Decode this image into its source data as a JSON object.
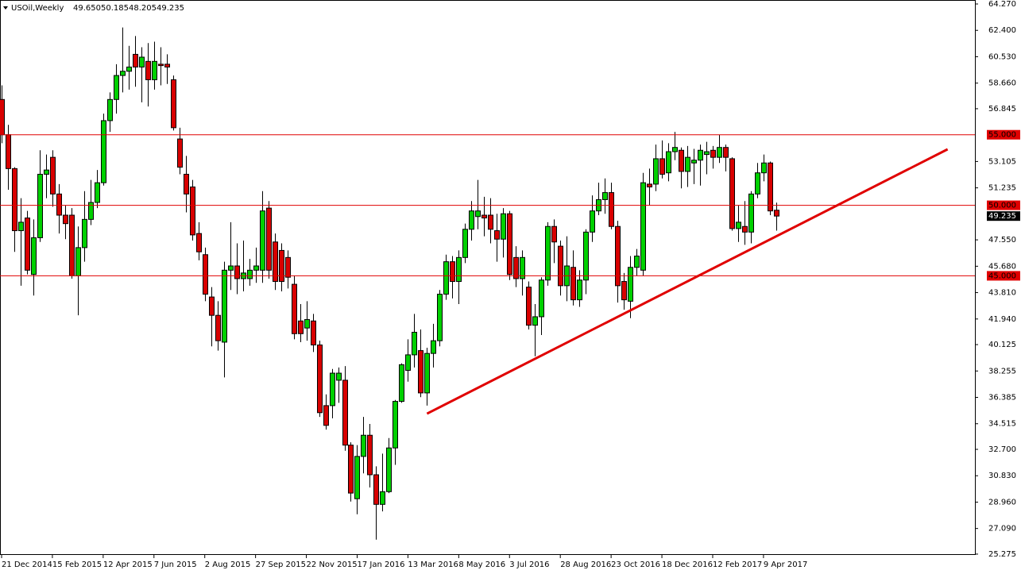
{
  "chart_data": {
    "type": "candlestick",
    "header": {
      "symbol": "USOil,Weekly",
      "ohlc": [
        "49.650",
        "50.185",
        "48.205",
        "49.235"
      ]
    },
    "open": [
      57.5,
      55.0,
      52.6,
      48.2,
      49.1,
      45.1,
      47.7,
      52.2,
      53.4,
      50.8,
      49.3,
      49.3,
      45.0,
      47.0,
      49.0,
      50.2,
      51.6,
      56.0,
      57.5,
      59.2,
      59.5,
      60.7,
      59.8,
      60.2,
      58.9,
      60.0,
      60.0,
      58.9,
      54.7,
      52.2,
      51.3,
      48.0,
      46.5,
      43.5,
      42.2,
      40.3,
      45.4,
      45.7,
      44.8,
      44.8,
      45.4,
      45.4,
      49.8,
      47.4,
      46.8,
      46.3,
      44.4,
      41.8,
      41.3,
      41.8,
      40.1,
      35.8,
      35.8,
      37.6,
      37.6,
      33.0,
      29.2,
      32.2,
      33.7,
      30.9,
      28.8,
      29.7,
      32.8,
      36.1,
      38.3,
      39.4,
      39.7,
      36.7,
      39.5,
      40.4,
      43.7,
      46.0,
      44.6,
      46.3,
      48.3,
      49.2,
      49.3,
      49.3,
      48.2,
      47.6,
      49.4,
      46.3,
      44.8,
      44.2,
      41.5,
      42.1,
      44.7,
      48.5,
      47.1,
      44.3,
      45.6,
      43.3,
      44.7,
      48.1,
      49.6,
      50.4,
      50.9,
      48.5,
      44.6,
      43.2,
      45.6,
      45.4,
      51.5,
      51.5,
      53.3,
      52.3,
      53.8,
      53.9,
      52.4,
      53.0,
      53.2,
      53.6,
      53.9,
      53.4,
      54.1,
      53.3,
      48.35,
      48.5,
      48.1,
      50.8,
      52.3,
      53.0,
      49.65
    ],
    "high": [
      58.5,
      55.7,
      52.7,
      50.5,
      49.6,
      49.0,
      53.9,
      53.6,
      53.9,
      51.5,
      50.0,
      49.8,
      48.5,
      51.0,
      51.8,
      52.5,
      56.5,
      58.0,
      60.0,
      62.6,
      61.3,
      62.0,
      61.2,
      61.5,
      61.6,
      61.2,
      60.7,
      59.2,
      55.5,
      53.5,
      51.8,
      48.8,
      47.0,
      44.2,
      43.2,
      46.0,
      48.8,
      47.3,
      47.5,
      46.2,
      47.0,
      51.0,
      50.3,
      48.0,
      47.3,
      46.8,
      45.0,
      43.0,
      43.2,
      42.3,
      40.4,
      36.6,
      38.4,
      38.5,
      38.6,
      33.2,
      33.0,
      35.0,
      34.5,
      31.5,
      32.4,
      33.5,
      36.2,
      38.8,
      40.5,
      42.3,
      41.2,
      39.9,
      41.6,
      44.0,
      46.5,
      46.4,
      46.8,
      48.7,
      50.3,
      51.8,
      50.6,
      50.5,
      49.4,
      49.8,
      49.6,
      47.1,
      46.8,
      44.6,
      43.0,
      44.9,
      48.8,
      49.0,
      47.5,
      47.8,
      46.8,
      45.4,
      48.3,
      50.7,
      51.6,
      51.9,
      51.6,
      48.9,
      45.2,
      46.4,
      46.9,
      52.3,
      52.6,
      54.3,
      54.6,
      54.4,
      55.2,
      54.1,
      54.2,
      54.0,
      54.3,
      54.5,
      54.2,
      55.0,
      54.3,
      53.4,
      50.0,
      50.3,
      51.0,
      53.0,
      53.6,
      53.1,
      50.185
    ],
    "low": [
      54.4,
      51.1,
      46.7,
      44.3,
      45.1,
      43.6,
      47.4,
      50.5,
      49.9,
      48.0,
      47.6,
      44.8,
      42.2,
      46.0,
      48.6,
      49.8,
      51.4,
      55.2,
      56.5,
      58.0,
      58.2,
      58.4,
      57.3,
      57.0,
      58.2,
      58.5,
      58.6,
      55.3,
      52.2,
      49.5,
      47.5,
      46.1,
      43.2,
      40.0,
      39.7,
      37.8,
      44.0,
      43.7,
      43.9,
      44.3,
      44.5,
      44.5,
      44.8,
      44.0,
      43.9,
      44.1,
      40.5,
      40.3,
      40.4,
      39.6,
      35.0,
      34.1,
      34.9,
      36.0,
      32.6,
      29.0,
      28.1,
      31.0,
      30.0,
      26.3,
      28.3,
      29.6,
      31.6,
      36.0,
      37.5,
      38.5,
      36.4,
      35.8,
      38.5,
      40.0,
      43.3,
      43.4,
      43.0,
      45.9,
      47.5,
      48.3,
      47.8,
      47.3,
      46.0,
      46.3,
      44.7,
      44.2,
      43.6,
      41.2,
      39.3,
      40.8,
      44.3,
      45.9,
      43.6,
      43.2,
      42.9,
      42.8,
      43.7,
      47.4,
      49.3,
      49.4,
      48.3,
      43.1,
      42.6,
      42.0,
      45.0,
      45.0,
      50.0,
      51.0,
      51.9,
      51.7,
      53.2,
      51.2,
      51.3,
      51.5,
      51.4,
      52.2,
      52.6,
      53.0,
      52.4,
      48.2,
      47.4,
      47.2,
      47.3,
      50.5,
      51.7,
      49.3,
      48.205
    ],
    "close": [
      55.0,
      52.6,
      48.2,
      48.8,
      45.4,
      47.7,
      52.2,
      52.5,
      50.8,
      49.3,
      48.7,
      45.0,
      47.0,
      49.0,
      50.2,
      51.6,
      56.0,
      57.5,
      59.2,
      59.5,
      59.8,
      59.8,
      60.5,
      58.9,
      60.2,
      59.9,
      59.8,
      55.5,
      52.7,
      50.8,
      47.9,
      46.7,
      43.7,
      42.2,
      40.4,
      45.4,
      45.7,
      44.8,
      45.2,
      45.4,
      45.7,
      49.6,
      45.4,
      44.6,
      44.6,
      44.9,
      40.9,
      40.9,
      41.9,
      40.1,
      35.3,
      34.4,
      38.1,
      38.1,
      33.0,
      29.6,
      32.2,
      33.7,
      30.9,
      28.8,
      29.7,
      32.8,
      36.1,
      38.7,
      39.4,
      41.0,
      36.7,
      39.5,
      40.4,
      43.7,
      46.0,
      44.6,
      46.3,
      48.3,
      49.6,
      49.6,
      49.1,
      48.3,
      47.6,
      49.4,
      45.1,
      44.8,
      46.3,
      41.5,
      42.1,
      44.7,
      48.5,
      47.4,
      44.3,
      45.7,
      43.3,
      44.7,
      48.1,
      49.6,
      50.4,
      50.9,
      48.5,
      44.3,
      43.3,
      45.6,
      46.4,
      51.6,
      51.3,
      53.3,
      52.2,
      53.8,
      54.1,
      52.4,
      53.4,
      53.2,
      53.9,
      53.8,
      53.4,
      54.1,
      53.4,
      48.35,
      48.8,
      48.1,
      50.8,
      52.3,
      53.0,
      49.6,
      49.235
    ],
    "up_color": "#00d000",
    "down_color": "#d80000",
    "xlim": [
      -0.25,
      153.3
    ],
    "ylim": [
      25.215,
      64.551
    ],
    "xticks": [
      {
        "value": 0,
        "label": "21 Dec 2014"
      },
      {
        "value": 8,
        "label": "15 Feb 2015"
      },
      {
        "value": 16,
        "label": "12 Apr 2015"
      },
      {
        "value": 24,
        "label": "7 Jun 2015"
      },
      {
        "value": 32,
        "label": "2 Aug 2015"
      },
      {
        "value": 40,
        "label": "27 Sep 2015"
      },
      {
        "value": 48,
        "label": "22 Nov 2015"
      },
      {
        "value": 56,
        "label": "17 Jan 2016"
      },
      {
        "value": 64,
        "label": "13 Mar 2016"
      },
      {
        "value": 72,
        "label": "8 May 2016"
      },
      {
        "value": 80,
        "label": "3 Jul 2016"
      },
      {
        "value": 88,
        "label": "28 Aug 2016"
      },
      {
        "value": 96,
        "label": "23 Oct 2016"
      },
      {
        "value": 104,
        "label": "18 Dec 2016"
      },
      {
        "value": 112,
        "label": "12 Feb 2017"
      },
      {
        "value": 120,
        "label": "9 Apr 2017"
      }
    ],
    "yticks": [
      {
        "value": 64.27,
        "label": "64.270"
      },
      {
        "value": 62.4,
        "label": "62.400"
      },
      {
        "value": 60.53,
        "label": "60.530"
      },
      {
        "value": 58.66,
        "label": "58.660"
      },
      {
        "value": 56.845,
        "label": "56.845"
      },
      {
        "value": 53.105,
        "label": "53.105"
      },
      {
        "value": 51.235,
        "label": "51.235"
      },
      {
        "value": 47.55,
        "label": "47.550"
      },
      {
        "value": 45.68,
        "label": "45.680"
      },
      {
        "value": 43.81,
        "label": "43.810"
      },
      {
        "value": 41.94,
        "label": "41.940"
      },
      {
        "value": 40.125,
        "label": "40.125"
      },
      {
        "value": 38.255,
        "label": "38.255"
      },
      {
        "value": 36.385,
        "label": "36.385"
      },
      {
        "value": 34.515,
        "label": "34.515"
      },
      {
        "value": 32.7,
        "label": "32.700"
      },
      {
        "value": 30.83,
        "label": "30.830"
      },
      {
        "value": 28.96,
        "label": "28.960"
      },
      {
        "value": 27.09,
        "label": "27.090"
      },
      {
        "value": 25.275,
        "label": "25.275"
      }
    ],
    "hlines": [
      {
        "value": 55,
        "label": "55.000"
      },
      {
        "value": 50,
        "label": "50.000"
      },
      {
        "value": 45,
        "label": "45.000"
      }
    ],
    "hline_color": "#e00000",
    "current_price": {
      "value": 49.235,
      "label": "49.235"
    },
    "trendline": {
      "x": [
        67,
        149
      ],
      "y": [
        35.23,
        53.97
      ],
      "color": "#e00000"
    }
  }
}
